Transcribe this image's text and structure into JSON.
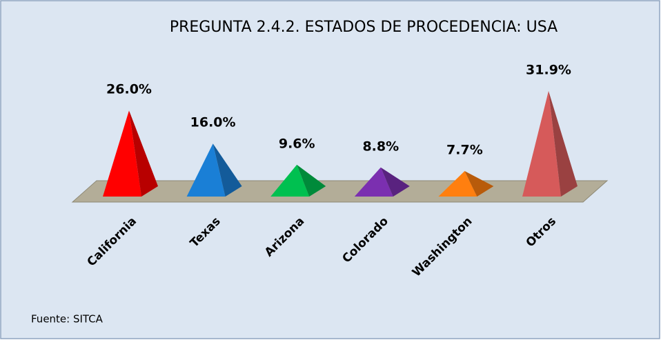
{
  "chart_data": {
    "type": "pyramid",
    "title": "PREGUNTA 2.4.2. ESTADOS DE PROCEDENCIA: USA",
    "categories": [
      "California",
      "Texas",
      "Arizona",
      "Colorado",
      "Washington",
      "Otros"
    ],
    "values": [
      26.0,
      16.0,
      9.6,
      8.8,
      7.7,
      31.9
    ],
    "value_labels": [
      "26.0%",
      "16.0%",
      "9.6%",
      "8.8%",
      "7.7%",
      "31.9%"
    ],
    "colors": [
      "#ff0000",
      "#1a7fd6",
      "#00c050",
      "#7b2fb0",
      "#ff7f0f",
      "#d65a5a"
    ],
    "source": "Fuente: SITCA"
  }
}
